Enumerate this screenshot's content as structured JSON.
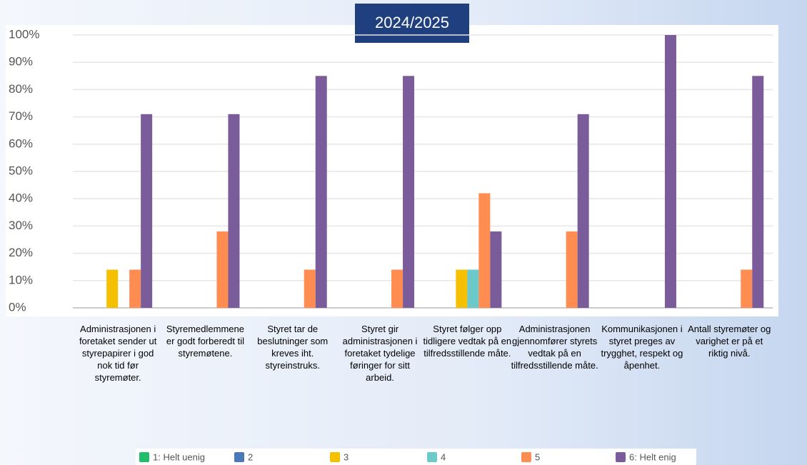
{
  "chart_data": {
    "type": "bar",
    "title": "2024/2025",
    "categories": [
      "Administrasjonen i foretaket sender ut styrepapirer i god nok tid før styremøter.",
      "Styremedlemmene er godt forberedt til styremøtene.",
      "Styret tar de beslutninger som kreves iht. styreinstruks.",
      "Styret gir administrasjonen i foretaket tydelige føringer for sitt arbeid.",
      "Styret følger opp tidligere vedtak på en tilfredsstillende måte.",
      "Administrasjonen gjennomfører styrets vedtak på en tilfredsstillende måte.",
      "Kommunikasjonen i styret preges av trygghet, respekt og åpenhet.",
      "Antall styremøter og varighet er på et riktig nivå."
    ],
    "series": [
      {
        "name": "1: Helt uenig",
        "color": "#1fbf6a",
        "values": [
          0,
          0,
          0,
          0,
          0,
          0,
          0,
          0
        ]
      },
      {
        "name": "2",
        "color": "#4a78b8",
        "values": [
          0,
          0,
          0,
          0,
          0,
          0,
          0,
          0
        ]
      },
      {
        "name": "3",
        "color": "#f5c000",
        "values": [
          14,
          0,
          0,
          0,
          14,
          0,
          0,
          0
        ]
      },
      {
        "name": "4",
        "color": "#6cc9c9",
        "values": [
          0,
          0,
          0,
          0,
          14,
          0,
          0,
          0
        ]
      },
      {
        "name": "5",
        "color": "#ff8c50",
        "values": [
          14,
          28,
          14,
          14,
          42,
          28,
          0,
          14
        ]
      },
      {
        "name": "6: Helt enig",
        "color": "#7b5c9a",
        "values": [
          71,
          71,
          85,
          85,
          28,
          71,
          100,
          85
        ]
      }
    ],
    "ylim": [
      0,
      100
    ],
    "yticks": [
      {
        "value": 0,
        "label": "0%"
      },
      {
        "value": 10,
        "label": "10%"
      },
      {
        "value": 20,
        "label": "20%"
      },
      {
        "value": 30,
        "label": "30%"
      },
      {
        "value": 40,
        "label": "40%"
      },
      {
        "value": 50,
        "label": "50%"
      },
      {
        "value": 60,
        "label": "60%"
      },
      {
        "value": 70,
        "label": "70%"
      },
      {
        "value": 80,
        "label": "80%"
      },
      {
        "value": 90,
        "label": "90%"
      },
      {
        "value": 100,
        "label": "100%"
      }
    ],
    "grid": true,
    "legend": "bottom"
  }
}
